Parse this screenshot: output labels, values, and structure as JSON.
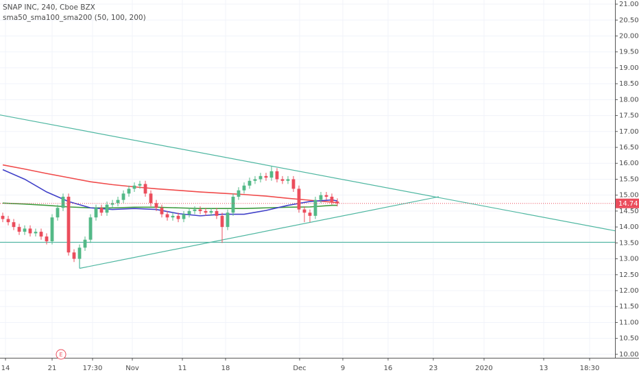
{
  "chart_data": {
    "type": "candlestick",
    "title": "SNAP INC, 240, Cboe BZX",
    "subtitle": "sma50_sma100_sma200 (50, 100, 200)",
    "x": [
      0,
      1,
      2,
      3,
      4,
      5,
      6,
      7,
      8,
      9,
      10,
      11,
      12,
      13,
      14,
      15,
      16,
      17,
      18,
      19,
      20,
      21,
      22,
      23,
      24,
      25,
      26,
      27,
      28,
      29,
      30,
      31,
      32,
      33,
      34,
      35,
      36,
      37,
      38,
      39,
      40,
      41,
      42,
      43,
      44,
      45,
      46,
      47,
      48,
      49,
      50,
      51,
      52,
      53,
      54,
      55,
      56,
      57,
      58,
      59,
      60,
      61
    ],
    "open": [
      14.35,
      14.25,
      14.15,
      14.0,
      13.85,
      13.95,
      13.8,
      13.85,
      13.7,
      13.55,
      14.3,
      14.6,
      14.95,
      13.2,
      13.0,
      13.35,
      13.6,
      14.3,
      14.6,
      14.45,
      14.7,
      14.75,
      14.85,
      15.05,
      15.2,
      15.3,
      15.35,
      15.05,
      14.75,
      14.6,
      14.4,
      14.3,
      14.35,
      14.25,
      14.4,
      14.5,
      14.55,
      14.5,
      14.45,
      14.5,
      14.35,
      14.0,
      14.45,
      14.95,
      15.15,
      15.3,
      15.45,
      15.5,
      15.6,
      15.55,
      15.75,
      15.5,
      15.45,
      15.5,
      15.2,
      14.55,
      14.45,
      14.35,
      14.85,
      15.0,
      14.95,
      14.8
    ],
    "high": [
      14.45,
      14.35,
      14.25,
      14.1,
      14.05,
      14.05,
      13.95,
      13.95,
      13.8,
      14.4,
      14.7,
      15.05,
      15.05,
      13.3,
      13.45,
      13.7,
      14.4,
      14.7,
      14.7,
      14.8,
      14.85,
      14.95,
      15.15,
      15.3,
      15.4,
      15.45,
      15.45,
      15.15,
      14.85,
      14.7,
      14.5,
      14.45,
      14.45,
      14.5,
      14.6,
      14.65,
      14.65,
      14.6,
      14.6,
      14.6,
      14.45,
      14.55,
      15.05,
      15.25,
      15.4,
      15.55,
      15.6,
      15.7,
      15.7,
      15.9,
      15.85,
      15.6,
      15.6,
      15.6,
      15.3,
      14.65,
      14.55,
      14.95,
      15.1,
      15.1,
      15.05,
      14.9
    ],
    "low": [
      14.15,
      14.05,
      13.9,
      13.75,
      13.75,
      13.7,
      13.7,
      13.6,
      13.45,
      13.45,
      14.2,
      14.5,
      13.1,
      12.9,
      12.9,
      13.25,
      13.5,
      14.2,
      14.35,
      14.35,
      14.6,
      14.65,
      14.75,
      14.95,
      15.1,
      15.2,
      14.95,
      14.65,
      14.5,
      14.3,
      14.2,
      14.2,
      14.15,
      14.15,
      14.3,
      14.4,
      14.4,
      14.35,
      14.35,
      14.25,
      13.5,
      13.9,
      14.35,
      14.85,
      15.05,
      15.2,
      15.35,
      15.4,
      15.45,
      15.45,
      15.4,
      15.35,
      15.35,
      15.1,
      14.45,
      14.15,
      14.15,
      14.25,
      14.75,
      14.85,
      14.7,
      14.65
    ],
    "close": [
      14.25,
      14.15,
      14.0,
      13.85,
      13.95,
      13.8,
      13.85,
      13.7,
      13.55,
      14.3,
      14.6,
      14.95,
      13.2,
      13.0,
      13.35,
      13.6,
      14.3,
      14.6,
      14.45,
      14.7,
      14.75,
      14.85,
      15.05,
      15.2,
      15.3,
      15.35,
      15.05,
      14.75,
      14.6,
      14.4,
      14.3,
      14.35,
      14.25,
      14.4,
      14.5,
      14.55,
      14.5,
      14.45,
      14.5,
      14.35,
      14.0,
      14.45,
      14.95,
      15.15,
      15.3,
      15.45,
      15.5,
      15.6,
      15.55,
      15.75,
      15.5,
      15.45,
      15.5,
      15.2,
      14.55,
      14.45,
      14.35,
      14.85,
      15.0,
      14.95,
      14.8,
      14.74
    ],
    "up_color": "#53b987",
    "down_color": "#eb4d5c",
    "series": [
      {
        "color": "#f04a4a",
        "x": [
          0,
          4,
          8,
          12,
          16,
          20,
          24,
          28,
          32,
          36,
          40,
          44,
          48,
          52,
          56,
          60,
          61
        ],
        "values": [
          15.95,
          15.82,
          15.68,
          15.55,
          15.42,
          15.33,
          15.26,
          15.2,
          15.15,
          15.1,
          15.06,
          15.02,
          14.97,
          14.9,
          14.84,
          14.78,
          14.76
        ]
      },
      {
        "color": "#3d9a3d",
        "x": [
          0,
          4,
          8,
          12,
          16,
          20,
          24,
          28,
          32,
          36,
          40,
          44,
          48,
          52,
          56,
          60,
          61
        ],
        "values": [
          14.75,
          14.72,
          14.68,
          14.63,
          14.6,
          14.6,
          14.62,
          14.62,
          14.6,
          14.58,
          14.58,
          14.58,
          14.6,
          14.62,
          14.63,
          14.68,
          14.68
        ]
      },
      {
        "color": "#3f3fc8",
        "x": [
          0,
          4,
          8,
          12,
          16,
          20,
          24,
          28,
          32,
          36,
          40,
          44,
          48,
          52,
          56,
          60,
          61
        ],
        "values": [
          15.8,
          15.5,
          15.1,
          14.8,
          14.6,
          14.55,
          14.58,
          14.55,
          14.42,
          14.35,
          14.4,
          14.4,
          14.52,
          14.68,
          14.8,
          14.85,
          14.82
        ]
      }
    ],
    "trendlines": [
      {
        "color": "#4db6a0",
        "x": [
          -0.5,
          111.625
        ],
        "values": [
          17.52,
          13.88
        ]
      },
      {
        "color": "#4db6a0",
        "x": [
          14,
          79.5
        ],
        "values": [
          12.7,
          14.95
        ]
      },
      {
        "color": "#4db6a0",
        "x": [
          14,
          14
        ],
        "values": [
          12.7,
          13.3
        ]
      },
      {
        "color": "#4db6a0",
        "x": [
          -0.5,
          111.625
        ],
        "values": [
          13.52,
          13.52
        ]
      }
    ],
    "last_price_color": "#eb4d5c",
    "earnings": {
      "x": 10.625,
      "label": "E"
    },
    "grid": true,
    "xlim": [
      -0.5,
      111.625
    ],
    "ylim": [
      9.89,
      21.13
    ],
    "xticks": [
      {
        "value": 0.5,
        "label": "14"
      },
      {
        "value": 9,
        "label": "21"
      },
      {
        "value": 16.375,
        "label": "17:30"
      },
      {
        "value": 23.625,
        "label": "Nov"
      },
      {
        "value": 32.75,
        "label": "11"
      },
      {
        "value": 40.625,
        "label": "18"
      },
      {
        "value": 54.125,
        "label": "Dec"
      },
      {
        "value": 62,
        "label": "9"
      },
      {
        "value": 70.25,
        "label": "16"
      },
      {
        "value": 78.5,
        "label": "23"
      },
      {
        "value": 87.75,
        "label": "2020"
      },
      {
        "value": 98.625,
        "label": "13"
      },
      {
        "value": 107,
        "label": "18:30"
      }
    ],
    "yticks": [
      {
        "value": 10,
        "label": "10.00"
      },
      {
        "value": 10.5,
        "label": "10.50"
      },
      {
        "value": 11,
        "label": "11.00"
      },
      {
        "value": 11.5,
        "label": "11.50"
      },
      {
        "value": 12,
        "label": "12.00"
      },
      {
        "value": 12.5,
        "label": "12.50"
      },
      {
        "value": 13,
        "label": "13.00"
      },
      {
        "value": 13.5,
        "label": "13.50"
      },
      {
        "value": 14,
        "label": "14.00"
      },
      {
        "value": 14.5,
        "label": "14.50"
      },
      {
        "value": 15,
        "label": "15.00"
      },
      {
        "value": 15.5,
        "label": "15.50"
      },
      {
        "value": 16,
        "label": "16.00"
      },
      {
        "value": 16.5,
        "label": "16.50"
      },
      {
        "value": 17,
        "label": "17.00"
      },
      {
        "value": 17.5,
        "label": "17.50"
      },
      {
        "value": 18,
        "label": "18.00"
      },
      {
        "value": 18.5,
        "label": "18.50"
      },
      {
        "value": 19,
        "label": "19.00"
      },
      {
        "value": 19.5,
        "label": "19.50"
      },
      {
        "value": 20,
        "label": "20.00"
      },
      {
        "value": 20.5,
        "label": "20.50"
      },
      {
        "value": 21,
        "label": "21.00"
      }
    ]
  }
}
